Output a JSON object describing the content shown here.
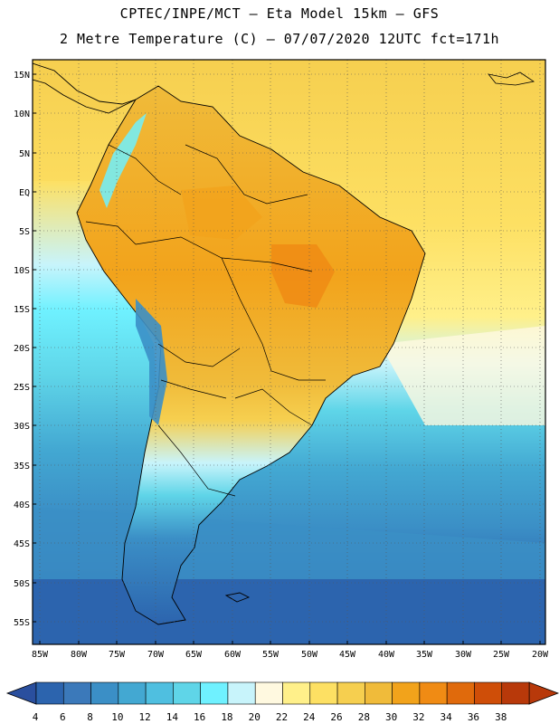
{
  "title_line1": "CPTEC/INPE/MCT –  Eta Model 15km – GFS",
  "title_line2": "2 Metre Temperature (C) – 07/07/2020 12UTC fct=171h",
  "lat_labels": [
    "15N",
    "10N",
    "5N",
    "EQ",
    "5S",
    "10S",
    "15S",
    "20S",
    "25S",
    "30S",
    "35S",
    "40S",
    "45S",
    "50S",
    "55S"
  ],
  "lon_labels": [
    "85W",
    "80W",
    "75W",
    "70W",
    "65W",
    "60W",
    "55W",
    "50W",
    "45W",
    "40W",
    "35W",
    "30W",
    "25W",
    "20W"
  ],
  "colorbar": {
    "labels": [
      "4",
      "6",
      "8",
      "10",
      "12",
      "14",
      "16",
      "18",
      "20",
      "22",
      "24",
      "26",
      "28",
      "30",
      "32",
      "34",
      "36",
      "38"
    ],
    "colors": [
      "#2c64ae",
      "#3b79ba",
      "#3b8fc6",
      "#43a8d2",
      "#4fbfe0",
      "#5fd5e8",
      "#6ff1ff",
      "#c8f4fb",
      "#fff9e0",
      "#fff08a",
      "#fde063",
      "#f6cf4f",
      "#f0bb3a",
      "#f2a31b",
      "#f08b14",
      "#e06a0c",
      "#cf4e08",
      "#b8390a"
    ],
    "low_arrow_color": "#2a4f9e",
    "high_arrow_color": "#b8390a"
  },
  "palette": {
    "ocean_south": "#2c64ae",
    "ocean_mid": "#3b8fc6",
    "ocean_cool": "#4fbfe0",
    "ocean_warm": "#fde063",
    "land_hot": "#f0bb3a",
    "land_very_hot": "#f08b14",
    "andes_cold": "#c8f4fb"
  }
}
